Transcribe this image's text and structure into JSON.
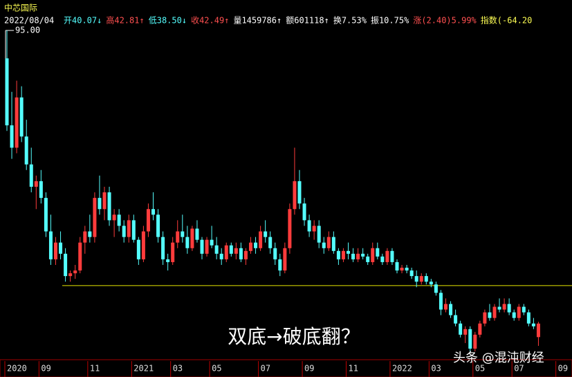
{
  "chart_data": {
    "type": "candlestick",
    "title": "中芯国际",
    "date": "2022/08/04",
    "header": [
      {
        "text": "开40.07↓",
        "color": "#54ffff"
      },
      {
        "text": "高42.81↑",
        "color": "#ff5050"
      },
      {
        "text": "低38.50↓",
        "color": "#54ffff"
      },
      {
        "text": "收42.49↑",
        "color": "#ff5050"
      },
      {
        "text": "量1459786↑",
        "color": "#ffffff"
      },
      {
        "text": "额601118↑",
        "color": "#ffffff"
      },
      {
        "text": "换7.53%",
        "color": "#ffffff"
      },
      {
        "text": "振10.75%",
        "color": "#ffffff"
      },
      {
        "text": "涨(2.40)5.99%",
        "color": "#ff5050"
      },
      {
        "text": "指数(-64.20",
        "color": "#ffff54"
      }
    ],
    "annotation": "双底→破底翻？",
    "watermark": "头条 @混沌财经",
    "up_color": "#ff3c3c",
    "down_color": "#54ffff",
    "support_line": 49.3,
    "support_color": "#e6e600",
    "ylim": [
      35.4,
      95
    ],
    "yticks": [
      {
        "value": 95,
        "label": "95.00"
      }
    ],
    "categories": [
      "2020",
      null,
      null,
      null,
      null,
      null,
      null,
      "09",
      null,
      null,
      null,
      null,
      null,
      null,
      null,
      null,
      null,
      "11",
      null,
      null,
      null,
      null,
      null,
      null,
      null,
      null,
      "2021",
      null,
      null,
      null,
      null,
      null,
      null,
      null,
      "03",
      null,
      null,
      null,
      null,
      null,
      null,
      null,
      "05",
      null,
      null,
      null,
      null,
      null,
      null,
      null,
      null,
      null,
      "07",
      null,
      null,
      null,
      null,
      null,
      null,
      null,
      null,
      "09",
      null,
      null,
      null,
      null,
      null,
      null,
      null,
      null,
      "11",
      null,
      null,
      null,
      null,
      null,
      null,
      null,
      null,
      "2022",
      null,
      null,
      null,
      null,
      null,
      null,
      null,
      "03",
      null,
      null,
      null,
      null,
      null,
      null,
      null,
      null,
      "05",
      null,
      null,
      null,
      null,
      null,
      null,
      null,
      "07",
      null,
      null,
      null,
      null,
      null,
      null,
      null,
      null,
      "09"
    ],
    "candles": [
      [
        90,
        95,
        77,
        78
      ],
      [
        78,
        84,
        72,
        74
      ],
      [
        74,
        86,
        73,
        83
      ],
      [
        83,
        85,
        75,
        76
      ],
      [
        76,
        79,
        70,
        71
      ],
      [
        71,
        74,
        66,
        67
      ],
      [
        67,
        69,
        63,
        68
      ],
      [
        68,
        70,
        64,
        65
      ],
      [
        65,
        66,
        58,
        59
      ],
      [
        59,
        62,
        53,
        54
      ],
      [
        54,
        58,
        53,
        57
      ],
      [
        57,
        59,
        54,
        55
      ],
      [
        55,
        56,
        50,
        51
      ],
      [
        51,
        52,
        50,
        51.5
      ],
      [
        51.5,
        53,
        50.5,
        52
      ],
      [
        52,
        58,
        51.5,
        57
      ],
      [
        57,
        60,
        55,
        59
      ],
      [
        59,
        62,
        57,
        58
      ],
      [
        58,
        66,
        57,
        65
      ],
      [
        65,
        69,
        62,
        63
      ],
      [
        63,
        67,
        61,
        66
      ],
      [
        66,
        67,
        60,
        61
      ],
      [
        61,
        63,
        58,
        62
      ],
      [
        62,
        63,
        59,
        60
      ],
      [
        60,
        61,
        57,
        58
      ],
      [
        58,
        62,
        57,
        61
      ],
      [
        61,
        62,
        57,
        57.5
      ],
      [
        57.5,
        58,
        53,
        54
      ],
      [
        54,
        60,
        53.5,
        59
      ],
      [
        59,
        64,
        58,
        63
      ],
      [
        63,
        66,
        61,
        62
      ],
      [
        62,
        63,
        57,
        58
      ],
      [
        58,
        59,
        53,
        54
      ],
      [
        54,
        55,
        52,
        53.5
      ],
      [
        53.5,
        58,
        53,
        57
      ],
      [
        57,
        61,
        56,
        59
      ],
      [
        59,
        62,
        57,
        58
      ],
      [
        58,
        60,
        55,
        56
      ],
      [
        56,
        60,
        55.5,
        59.5
      ],
      [
        59.5,
        61,
        57,
        57.5
      ],
      [
        57.5,
        58,
        54,
        55
      ],
      [
        55,
        58,
        54.5,
        57.5
      ],
      [
        57.5,
        60,
        56,
        56.5
      ],
      [
        56.5,
        58,
        54,
        55
      ],
      [
        55,
        56,
        53,
        54
      ],
      [
        54,
        57,
        53.5,
        56.5
      ],
      [
        56.5,
        57,
        54.5,
        55
      ],
      [
        55,
        57,
        54,
        56
      ],
      [
        56,
        57,
        53.5,
        54
      ],
      [
        54,
        56,
        53,
        55.5
      ],
      [
        55.5,
        58,
        55,
        57
      ],
      [
        57,
        58,
        55,
        56
      ],
      [
        56,
        60,
        55.5,
        59
      ],
      [
        59,
        61,
        57,
        58
      ],
      [
        58,
        59,
        55,
        56
      ],
      [
        56,
        57,
        53,
        54
      ],
      [
        54,
        55,
        51,
        52
      ],
      [
        52,
        57,
        51.5,
        56
      ],
      [
        56,
        64,
        55,
        63
      ],
      [
        63,
        74,
        62,
        68
      ],
      [
        68,
        70,
        63,
        64
      ],
      [
        64,
        65,
        60,
        61
      ],
      [
        61,
        62,
        58,
        59
      ],
      [
        59,
        61,
        57.5,
        60
      ],
      [
        60,
        61,
        56,
        57
      ],
      [
        57,
        58,
        55,
        56
      ],
      [
        56,
        59,
        55.5,
        58
      ],
      [
        58,
        59,
        55,
        55.5
      ],
      [
        55.5,
        56,
        53,
        54
      ],
      [
        54,
        56,
        53.5,
        55.5
      ],
      [
        55.5,
        57,
        54,
        55
      ],
      [
        55,
        56,
        53.5,
        54
      ],
      [
        54,
        56,
        53.5,
        55
      ],
      [
        55,
        56,
        54,
        54.5
      ],
      [
        54.5,
        55,
        53,
        53.5
      ],
      [
        53.5,
        57,
        53,
        56
      ],
      [
        56,
        57,
        54,
        54.5
      ],
      [
        54.5,
        55,
        53,
        53.5
      ],
      [
        53.5,
        56,
        53,
        55.5
      ],
      [
        55.5,
        56,
        53,
        53.5
      ],
      [
        53.5,
        54,
        51.5,
        52
      ],
      [
        52,
        53,
        51.5,
        52.5
      ],
      [
        52.5,
        53,
        51.5,
        52
      ],
      [
        52,
        52.5,
        50.5,
        51
      ],
      [
        51,
        52,
        49,
        50
      ],
      [
        50,
        51.5,
        49.5,
        51
      ],
      [
        51,
        51.5,
        49.5,
        50
      ],
      [
        50,
        50.5,
        49,
        49.5
      ],
      [
        49.5,
        50,
        47.5,
        48
      ],
      [
        48,
        48.5,
        44,
        45
      ],
      [
        45,
        47,
        44.5,
        46
      ],
      [
        46,
        46.5,
        43.5,
        44
      ],
      [
        44,
        45,
        42,
        42.5
      ],
      [
        42.5,
        43,
        40,
        40.5
      ],
      [
        40.5,
        42,
        39,
        41.5
      ],
      [
        41.5,
        42,
        37.5,
        38
      ],
      [
        38,
        41,
        37.5,
        40.5
      ],
      [
        40.5,
        43,
        40,
        42.5
      ],
      [
        42.5,
        45,
        42,
        44.5
      ],
      [
        44.5,
        46,
        43,
        43.5
      ],
      [
        43.5,
        46,
        43,
        45.5
      ],
      [
        45.5,
        47,
        44.5,
        45
      ],
      [
        45,
        47,
        44.5,
        46
      ],
      [
        46,
        47,
        44,
        44.5
      ],
      [
        44.5,
        45,
        43,
        43.5
      ],
      [
        43.5,
        46,
        43,
        45.5
      ],
      [
        45.5,
        46,
        44,
        44.5
      ],
      [
        44.5,
        45,
        42,
        42.5
      ],
      [
        42.5,
        43.5,
        41.5,
        42
      ],
      [
        40.07,
        42.81,
        38.5,
        42.49
      ],
      null,
      null,
      null,
      null
    ]
  }
}
